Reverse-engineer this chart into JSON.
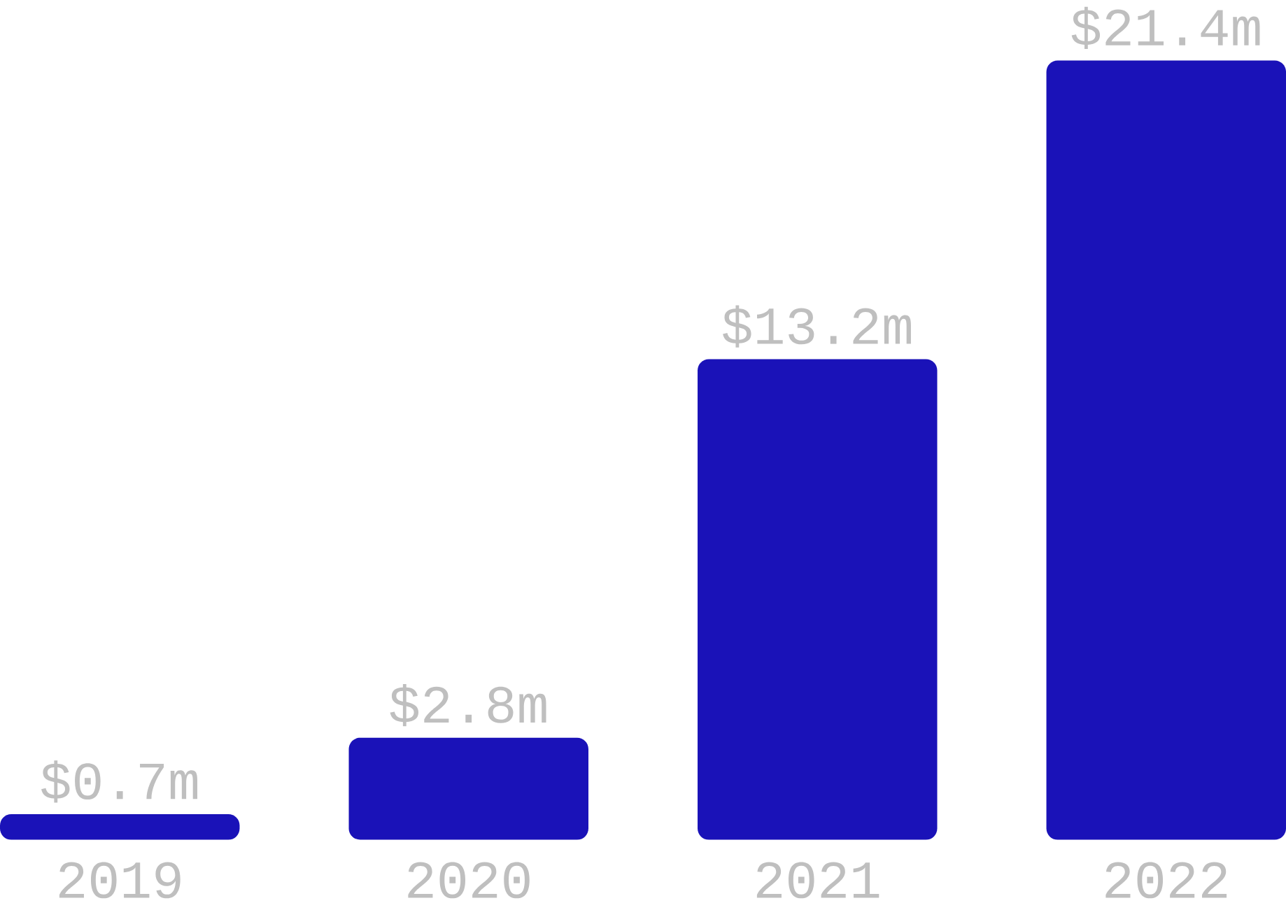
{
  "chart_data": {
    "type": "bar",
    "categories": [
      "2019",
      "2020",
      "2021",
      "2022"
    ],
    "values": [
      0.7,
      2.8,
      13.2,
      21.4
    ],
    "value_labels": [
      "$0.7m",
      "$2.8m",
      "$13.2m",
      "$21.4m"
    ],
    "color": "#1a12b8"
  }
}
